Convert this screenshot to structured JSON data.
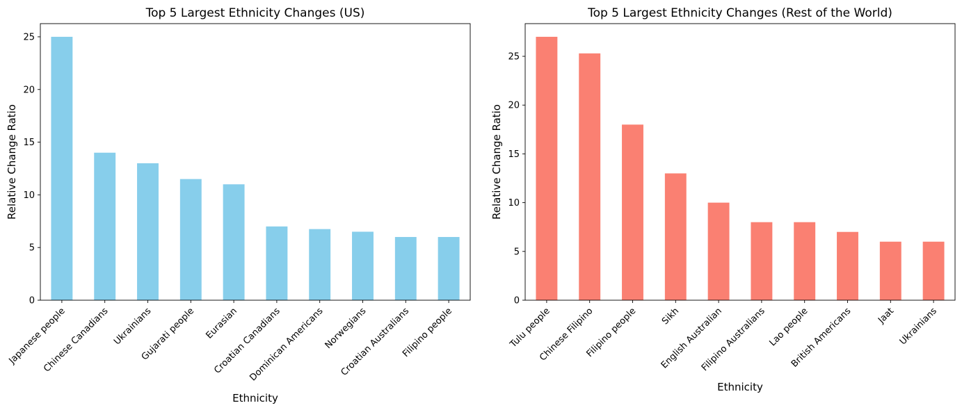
{
  "chart_data": [
    {
      "type": "bar",
      "title": "Top 5 Largest Ethnicity Changes (US)",
      "xlabel": "Ethnicity",
      "ylabel": "Relative Change Ratio",
      "ylim": [
        0,
        26.25
      ],
      "yticks": [
        0,
        5,
        10,
        15,
        20,
        25
      ],
      "color": "#87CEEB",
      "categories": [
        "Japanese people",
        "Chinese Canadians",
        "Ukrainians",
        "Gujarati people",
        "Eurasian",
        "Croatian Canadians",
        "Dominican Americans",
        "Norwegians",
        "Croatian Australians",
        "Filipino people"
      ],
      "values": [
        25,
        14,
        13,
        11.5,
        11,
        7,
        6.75,
        6.5,
        6,
        6
      ],
      "grid": false
    },
    {
      "type": "bar",
      "title": "Top 5 Largest Ethnicity Changes (Rest of the World)",
      "xlabel": "Ethnicity",
      "ylabel": "Relative Change Ratio",
      "ylim": [
        0,
        28.35
      ],
      "yticks": [
        0,
        5,
        10,
        15,
        20,
        25
      ],
      "color": "#FA8072",
      "categories": [
        "Tulu people",
        "Chinese Filipino",
        "Filipino people",
        "Sikh",
        "English Australian",
        "Filipino Australians",
        "Lao people",
        "British Americans",
        "Jaat",
        "Ukrainians"
      ],
      "values": [
        27,
        25.3,
        18,
        13,
        10,
        8,
        8,
        7,
        6,
        6
      ],
      "grid": false
    }
  ]
}
